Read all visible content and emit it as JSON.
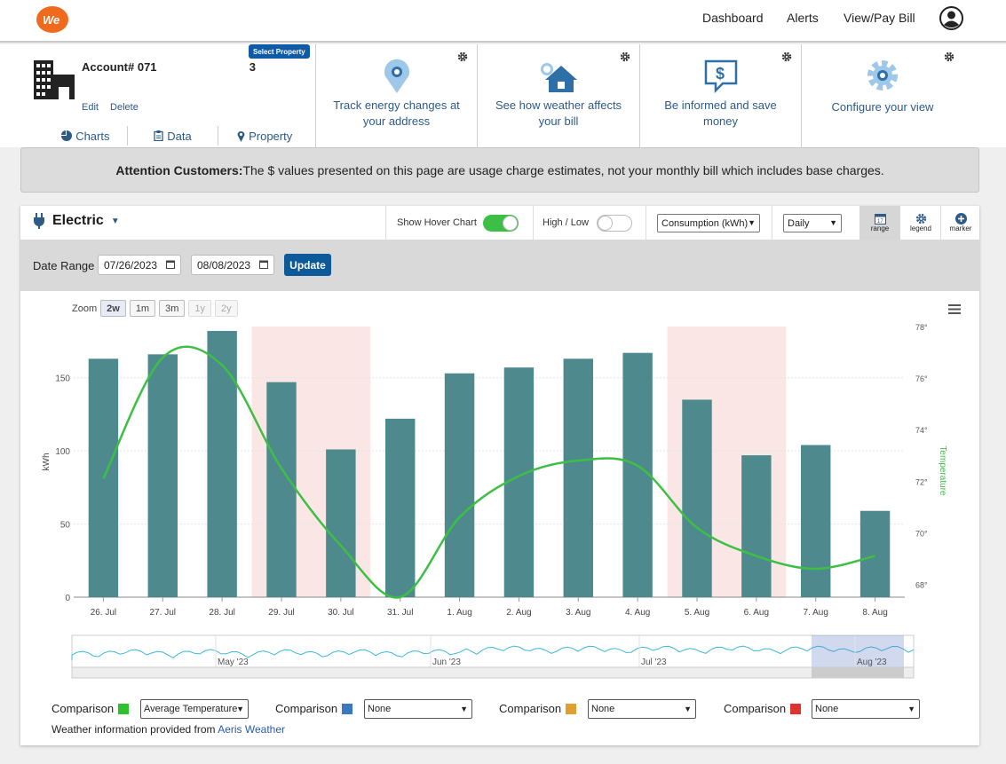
{
  "nav": {
    "links": [
      "Dashboard",
      "Alerts",
      "View/Pay Bill"
    ],
    "logo_text": "We"
  },
  "account": {
    "label": "Account# 071",
    "redacted_tail": "3",
    "select_property": "Select Property",
    "edit": "Edit",
    "delete": "Delete",
    "tabs": [
      "Charts",
      "Data",
      "Property"
    ]
  },
  "tiles": [
    {
      "text": "Track energy changes at your address",
      "icon": "map-pin-icon"
    },
    {
      "text": "See how weather affects your bill",
      "icon": "weather-house-icon"
    },
    {
      "text": "Be informed and save money",
      "icon": "dollar-chat-icon"
    },
    {
      "text": "Configure your view",
      "icon": "gear-icon"
    }
  ],
  "attention": {
    "bold": "Attention Customers:",
    "text": "The $ values presented on this page are usage charge estimates, not your monthly bill which includes base charges."
  },
  "controls": {
    "service": "Electric",
    "hover_chart_label": "Show Hover Chart",
    "hover_chart_on": true,
    "high_low_label": "High / Low",
    "high_low_on": false,
    "measure": "Consumption (kWh)",
    "interval": "Daily",
    "buttons": [
      "range",
      "legend",
      "marker"
    ]
  },
  "date_range": {
    "label": "Date Range",
    "start": "07/26/2023",
    "end": "08/08/2023",
    "update": "Update"
  },
  "zoom": {
    "label": "Zoom",
    "options": [
      "2w",
      "1m",
      "3m",
      "1y",
      "2y"
    ],
    "selected": "2w",
    "disabled": [
      "1y",
      "2y"
    ]
  },
  "chart_data": {
    "type": "bar",
    "categories": [
      "26. Jul",
      "27. Jul",
      "28. Jul",
      "29. Jul",
      "30. Jul",
      "31. Jul",
      "1. Aug",
      "2. Aug",
      "3. Aug",
      "4. Aug",
      "5. Aug",
      "6. Aug",
      "7. Aug",
      "8. Aug"
    ],
    "series": [
      {
        "values": [
          163,
          166,
          182,
          147,
          101,
          122,
          153,
          157,
          163,
          167,
          135,
          97,
          104,
          59
        ],
        "color": "#4e8a8d",
        "axis": "left"
      },
      {
        "type": "line",
        "values": [
          72.1,
          76.8,
          76.5,
          72.5,
          69.5,
          67.5,
          70.6,
          72.2,
          72.8,
          72.6,
          70.2,
          69.1,
          68.6,
          69.1
        ],
        "color": "#3dbf45",
        "axis": "right"
      }
    ],
    "weekend_highlight": [
      "29. Jul",
      "30. Jul",
      "5. Aug",
      "6. Aug"
    ],
    "weekend_color": "#fbe6e6",
    "ylabel": "kWh",
    "y2label": "Temperature",
    "ylim": [
      0,
      185
    ],
    "yticks": [
      0,
      50,
      100,
      150
    ],
    "y2lim": [
      67.5,
      78
    ],
    "y2ticks": [
      "68°",
      "70°",
      "72°",
      "74°",
      "76°",
      "78°"
    ],
    "y2tick_values": [
      68,
      70,
      72,
      74,
      76,
      78
    ],
    "navigator_labels": [
      "May '23",
      "Jun '23",
      "Jul '23",
      "Aug '23"
    ]
  },
  "comparisons": [
    {
      "label": "Comparison",
      "color": "#2ec02e",
      "value": "Average Temperature"
    },
    {
      "label": "Comparison",
      "color": "#3a78c2",
      "value": "None"
    },
    {
      "label": "Comparison",
      "color": "#e0a030",
      "value": "None"
    },
    {
      "label": "Comparison",
      "color": "#dd3333",
      "value": "None"
    }
  ],
  "weather_note": {
    "text": "Weather information provided from ",
    "link": "Aeris Weather"
  }
}
